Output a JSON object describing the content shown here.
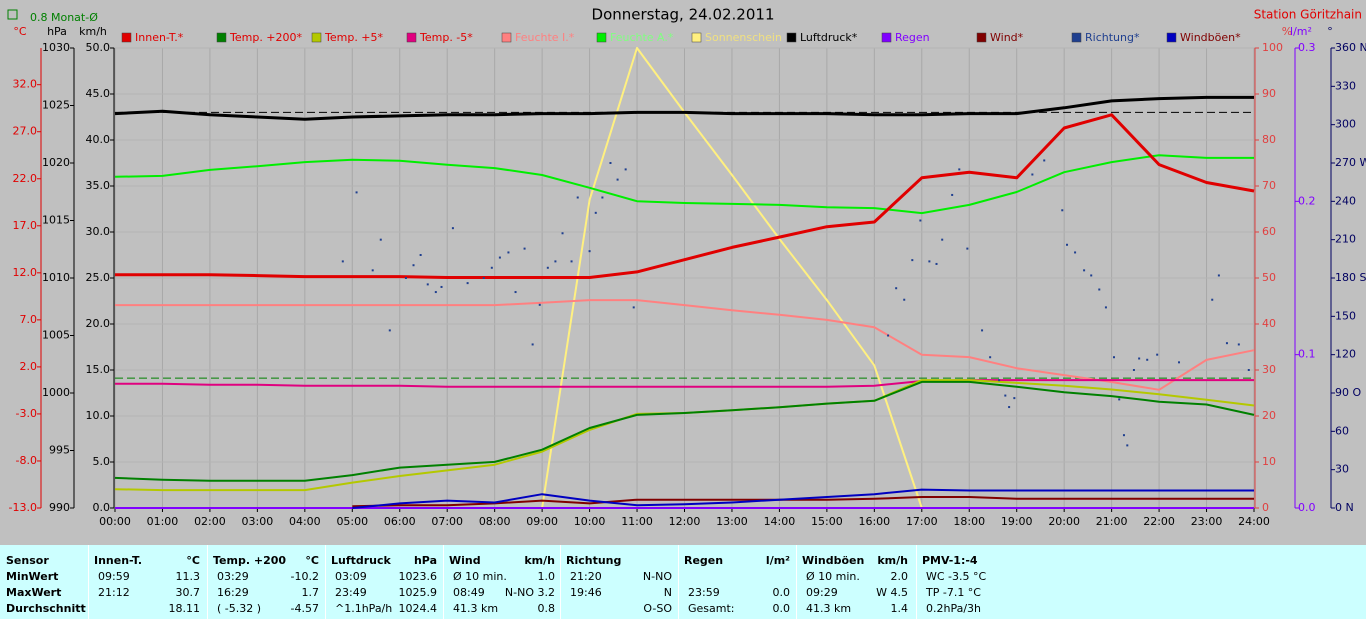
{
  "chart_data": {
    "type": "line",
    "title": "Donnerstag, 24.02.2011",
    "station": "Station Göritzhain",
    "xlim": [
      0,
      24
    ],
    "xticks": [
      {
        "value": 0,
        "label": "00:00"
      },
      {
        "value": 1,
        "label": "01:00"
      },
      {
        "value": 2,
        "label": "02:00"
      },
      {
        "value": 3,
        "label": "03:00"
      },
      {
        "value": 4,
        "label": "04:00"
      },
      {
        "value": 5,
        "label": "05:00"
      },
      {
        "value": 6,
        "label": "06:00"
      },
      {
        "value": 7,
        "label": "07:00"
      },
      {
        "value": 8,
        "label": "08:00"
      },
      {
        "value": 9,
        "label": "09:00"
      },
      {
        "value": 10,
        "label": "10:00"
      },
      {
        "value": 11,
        "label": "11:00"
      },
      {
        "value": 12,
        "label": "12:00"
      },
      {
        "value": 13,
        "label": "13:00"
      },
      {
        "value": 14,
        "label": "14:00"
      },
      {
        "value": 15,
        "label": "15:00"
      },
      {
        "value": 16,
        "label": "16:00"
      },
      {
        "value": 17,
        "label": "17:00"
      },
      {
        "value": 18,
        "label": "18:00"
      },
      {
        "value": 19,
        "label": "19:00"
      },
      {
        "value": 20,
        "label": "20:00"
      },
      {
        "value": 21,
        "label": "21:00"
      },
      {
        "value": 22,
        "label": "22:00"
      },
      {
        "value": 23,
        "label": "23:00"
      },
      {
        "value": 24,
        "label": "24:00"
      }
    ],
    "grid": true,
    "x": [
      0,
      1,
      2,
      3,
      4,
      5,
      6,
      7,
      8,
      9,
      10,
      11,
      12,
      13,
      14,
      15,
      16,
      17,
      18,
      19,
      20,
      21,
      22,
      23,
      24
    ],
    "axes": [
      {
        "label": "°C",
        "color": "#e00000",
        "lim": [
          -13,
          35.9
        ],
        "ticks": [
          {
            "value": -13,
            "label": "-13.0"
          },
          {
            "value": -8,
            "label": "-8.0"
          },
          {
            "value": -3,
            "label": "-3.0"
          },
          {
            "value": 2,
            "label": "2.0"
          },
          {
            "value": 7,
            "label": "7.0"
          },
          {
            "value": 12,
            "label": "12.0"
          },
          {
            "value": 17,
            "label": "17.0"
          },
          {
            "value": 22,
            "label": "22.0"
          },
          {
            "value": 27,
            "label": "27.0"
          },
          {
            "value": 32,
            "label": "32.0"
          }
        ]
      },
      {
        "label": "hPa",
        "color": "#000000",
        "lim": [
          990,
          1030
        ],
        "ticks": [
          990,
          995,
          1000,
          1005,
          1010,
          1015,
          1020,
          1025,
          1030
        ]
      },
      {
        "label": "km/h",
        "color": "#000000",
        "lim": [
          0,
          50
        ],
        "ticks": [
          {
            "value": 0,
            "label": "0.0"
          },
          {
            "value": 5,
            "label": "5.0"
          },
          {
            "value": 10,
            "label": "10.0"
          },
          {
            "value": 15,
            "label": "15.0"
          },
          {
            "value": 20,
            "label": "20.0"
          },
          {
            "value": 25,
            "label": "25.0"
          },
          {
            "value": 30,
            "label": "30.0"
          },
          {
            "value": 35,
            "label": "35.0"
          },
          {
            "value": 40,
            "label": "40.0"
          },
          {
            "value": 45,
            "label": "45.0"
          },
          {
            "value": 50,
            "label": "50.0"
          }
        ]
      },
      {
        "label": "%",
        "color": "#e04040",
        "lim": [
          0,
          100
        ],
        "ticks": [
          0,
          10,
          20,
          30,
          40,
          50,
          60,
          70,
          80,
          90,
          100
        ]
      },
      {
        "label": "l/m²",
        "color": "#8000ff",
        "lim": [
          0,
          0.3
        ],
        "ticks": [
          {
            "value": 0,
            "label": "0.0"
          },
          0.1,
          0.2,
          0.3
        ]
      },
      {
        "label": "°",
        "color": "#000060",
        "lim": [
          0,
          360
        ],
        "ticks": [
          {
            "value": 0,
            "label": "0 N"
          },
          30,
          60,
          {
            "value": 90,
            "label": "90 O"
          },
          120,
          150,
          {
            "value": 180,
            "label": "180 S"
          },
          210,
          240,
          {
            "value": 270,
            "label": "270 W"
          },
          300,
          330,
          {
            "value": 360,
            "label": "360 N"
          }
        ]
      }
    ],
    "reference_lines": [
      {
        "value": 0.8,
        "label": "0.8 Monat-Ø",
        "axis": 0,
        "color": "#008000"
      }
    ],
    "series": [
      {
        "name": "Sonnenschein",
        "color": "#fff080",
        "label_color": "#f0e080",
        "axis": 3,
        "values": [
          0,
          0,
          0,
          0,
          0,
          0,
          0,
          0,
          0,
          0,
          67,
          100,
          86,
          72.4,
          58.5,
          45.2,
          31,
          0,
          0,
          0,
          0,
          0,
          0,
          0,
          0
        ]
      },
      {
        "name": "Regen",
        "color": "#8000ff",
        "label_color": "#8000ff",
        "axis": 4,
        "values": [
          0,
          0,
          0,
          0,
          0,
          0,
          0,
          0,
          0,
          0,
          0,
          0,
          0,
          0,
          0,
          0,
          0,
          0,
          0,
          0,
          0,
          0,
          0,
          0,
          0
        ]
      },
      {
        "name": "Wind*",
        "color": "#800000",
        "label_color": "#800000",
        "axis": 2,
        "values": [
          null,
          null,
          null,
          null,
          null,
          0.2,
          0.3,
          0.3,
          0.5,
          0.8,
          0.5,
          0.9,
          0.9,
          0.9,
          0.9,
          0.9,
          1.0,
          1.2,
          1.2,
          1.0,
          1.0,
          1.0,
          1.0,
          1.0,
          1.0
        ]
      },
      {
        "name": "Windböen*",
        "color": "#0000c0",
        "label_color": "#800000",
        "axis": 2,
        "values": [
          null,
          null,
          null,
          null,
          null,
          0.0,
          0.5,
          0.8,
          0.6,
          1.5,
          0.8,
          0.3,
          0.4,
          0.6,
          0.9,
          1.2,
          1.5,
          2.0,
          1.9,
          1.9,
          1.9,
          1.9,
          1.9,
          1.9,
          1.9
        ]
      },
      {
        "name": "Feuchte I.*",
        "color": "#ff8080",
        "label_color": "#ff8080",
        "axis": 3,
        "values": [
          44.1,
          44.1,
          44.1,
          44.1,
          44.1,
          44.1,
          44.1,
          44.1,
          44.1,
          44.6,
          45.2,
          45.2,
          44.1,
          43.0,
          42.0,
          40.9,
          39.3,
          33.3,
          32.8,
          30.4,
          28.9,
          27.4,
          25.7,
          32.2,
          34.3
        ]
      },
      {
        "name": "Feuchte A.*",
        "color": "#00ee00",
        "label_color": "#80ff80",
        "axis": 3,
        "values": [
          72.0,
          72.2,
          73.5,
          74.3,
          75.2,
          75.7,
          75.5,
          74.6,
          73.9,
          72.4,
          69.6,
          66.7,
          66.3,
          66.1,
          65.9,
          65.4,
          65.2,
          64.1,
          65.9,
          68.7,
          73.0,
          75.2,
          76.7,
          76.1,
          76.1
        ]
      },
      {
        "name": "Temp. -5*",
        "color": "#e0007f",
        "label_color": "#e00000",
        "axis": 0,
        "values": [
          0.2,
          0.2,
          0.1,
          0.1,
          0.0,
          0.0,
          0.0,
          -0.1,
          -0.1,
          -0.1,
          -0.1,
          -0.1,
          -0.1,
          -0.1,
          -0.1,
          -0.1,
          0.0,
          0.5,
          0.6,
          0.6,
          0.6,
          0.6,
          0.6,
          0.6,
          0.6
        ]
      },
      {
        "name": "Temp. +5*",
        "color": "#b4c800",
        "label_color": "#e00000",
        "axis": 0,
        "values": [
          -11.0,
          -11.1,
          -11.1,
          -11.1,
          -11.1,
          -10.3,
          -9.6,
          -9.0,
          -8.4,
          -7.0,
          -4.7,
          -3.0,
          -2.9,
          -2.6,
          -2.3,
          -1.9,
          -1.6,
          0.6,
          0.6,
          0.3,
          0.0,
          -0.4,
          -0.9,
          -1.5,
          -2.1
        ]
      },
      {
        "name": "Temp. +200*",
        "color": "#008000",
        "label_color": "#e00000",
        "axis": 0,
        "values": [
          -9.8,
          -10.0,
          -10.1,
          -10.1,
          -10.1,
          -9.5,
          -8.7,
          -8.4,
          -8.1,
          -6.8,
          -4.5,
          -3.1,
          -2.9,
          -2.6,
          -2.3,
          -1.9,
          -1.6,
          0.4,
          0.4,
          -0.1,
          -0.7,
          -1.1,
          -1.7,
          -2.0,
          -3.1
        ]
      },
      {
        "name": "Luftdruck*",
        "color": "#000000",
        "label_color": "#000000",
        "axis": 1,
        "values": [
          1024.3,
          1024.5,
          1024.2,
          1024.0,
          1023.8,
          1024.0,
          1024.1,
          1024.2,
          1024.2,
          1024.3,
          1024.3,
          1024.4,
          1024.4,
          1024.3,
          1024.3,
          1024.3,
          1024.2,
          1024.2,
          1024.3,
          1024.3,
          1024.8,
          1025.4,
          1025.6,
          1025.7,
          1025.7
        ]
      },
      {
        "name": "Innen-T.*",
        "color": "#e00000",
        "label_color": "#e00000",
        "axis": 0,
        "values": [
          11.8,
          11.8,
          11.8,
          11.7,
          11.6,
          11.6,
          11.6,
          11.5,
          11.5,
          11.5,
          11.5,
          12.1,
          13.4,
          14.7,
          15.8,
          16.9,
          17.4,
          22.1,
          22.7,
          22.1,
          27.4,
          28.8,
          23.5,
          21.6,
          20.7
        ]
      },
      {
        "name": "Richtung*",
        "type": "scatter",
        "color": "#1f3f8f",
        "label_color": "#1f3f8f",
        "axis": 5,
        "x": [
          4.8,
          5.09,
          5.43,
          5.6,
          5.79,
          6.13,
          6.29,
          6.44,
          6.59,
          6.76,
          6.88,
          7.12,
          7.43,
          7.77,
          7.94,
          8.11,
          8.29,
          8.44,
          8.63,
          8.8,
          8.95,
          9.12,
          9.28,
          9.43,
          9.62,
          9.75,
          10.0,
          10.13,
          10.27,
          10.44,
          10.59,
          10.76,
          10.93,
          16.29,
          16.46,
          16.63,
          16.8,
          16.97,
          17.16,
          17.31,
          17.43,
          17.64,
          17.79,
          17.96,
          18.27,
          18.44,
          18.63,
          18.76,
          18.84,
          18.95,
          19.33,
          19.58,
          19.96,
          20.06,
          20.23,
          20.42,
          20.57,
          20.74,
          20.88,
          21.05,
          21.16,
          21.26,
          21.33,
          21.47,
          21.58,
          21.75,
          21.96,
          22.42,
          23.12,
          23.26,
          23.43,
          23.68,
          23.89
        ],
        "values": [
          193,
          247,
          186,
          210,
          139,
          180,
          190,
          198,
          175,
          169,
          173,
          219,
          176,
          180,
          188,
          196,
          200,
          169,
          203,
          128,
          159,
          188,
          193,
          215,
          193,
          243,
          201,
          231,
          243,
          270,
          257,
          265,
          157,
          135,
          172,
          163,
          194,
          225,
          193,
          191,
          210,
          245,
          265,
          203,
          139,
          118,
          100,
          88,
          79,
          86,
          261,
          272,
          233,
          206,
          200,
          186,
          182,
          171,
          157,
          118,
          85,
          57,
          49,
          108,
          117,
          116,
          120,
          114,
          163,
          182,
          129,
          128,
          108
        ]
      }
    ]
  },
  "table": {
    "row_labels": [
      "Sensor",
      "MinWert",
      "MaxWert",
      "Durchschnitt"
    ],
    "groups": [
      {
        "header": [
          "Innen-T.",
          "°C"
        ],
        "rows": [
          [
            "09:59",
            "11.3"
          ],
          [
            "21:12",
            "30.7"
          ],
          [
            null,
            "18.11"
          ]
        ]
      },
      {
        "header": [
          "Temp. +200",
          "°C"
        ],
        "rows": [
          [
            "03:29",
            "-10.2"
          ],
          [
            "16:29",
            "1.7"
          ],
          [
            "( -5.32 )",
            "-4.57"
          ]
        ]
      },
      {
        "header": [
          "Luftdruck",
          "hPa"
        ],
        "rows": [
          [
            "03:09",
            "1023.6"
          ],
          [
            "23:49",
            "1025.9"
          ],
          [
            "^1.1hPa/h",
            "1024.4"
          ]
        ]
      },
      {
        "header": [
          "Wind",
          "km/h"
        ],
        "rows": [
          [
            "Ø 10 min.",
            "1.0"
          ],
          [
            "08:49",
            "N-NO 3.2"
          ],
          [
            "41.3 km",
            "0.8"
          ]
        ]
      },
      {
        "header": [
          "Richtung",
          null
        ],
        "rows": [
          [
            "21:20",
            "N-NO"
          ],
          [
            "19:46",
            "N"
          ],
          [
            null,
            "O-SO"
          ]
        ]
      },
      {
        "header": [
          "Regen",
          "l/m²"
        ],
        "rows": [
          [
            null,
            null
          ],
          [
            "23:59",
            "0.0"
          ],
          [
            "Gesamt:",
            "0.0"
          ]
        ]
      },
      {
        "header": [
          "Windböen",
          "km/h"
        ],
        "rows": [
          [
            "Ø 10 min.",
            "2.0"
          ],
          [
            "09:29",
            "W 4.5"
          ],
          [
            "41.3 km",
            "1.4"
          ]
        ]
      },
      {
        "header": [
          "PMV-1:-4",
          null
        ],
        "rows": [
          [
            "WC -3.5 °C",
            null
          ],
          [
            "TP -7.1 °C",
            null
          ],
          [
            "0.2hPa/3h",
            null
          ]
        ]
      }
    ]
  }
}
